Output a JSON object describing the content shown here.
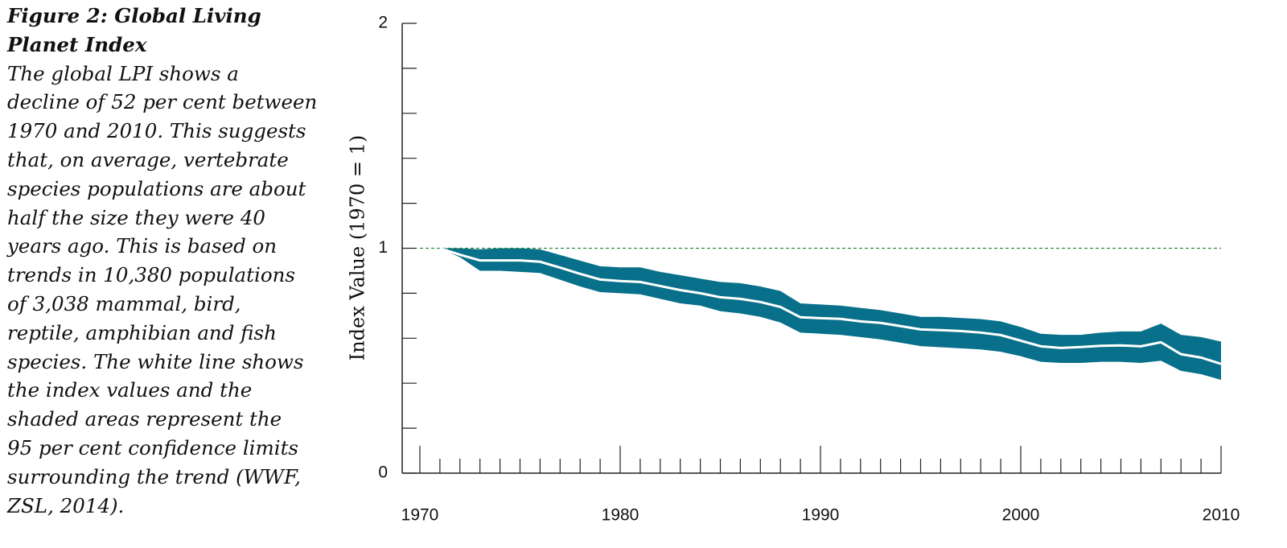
{
  "caption": {
    "title_lines": [
      "Figure 2: Global Living",
      "Planet Index"
    ],
    "body_lines": [
      "The global LPI shows a",
      "decline of 52 per cent between",
      "1970 and 2010. This suggests",
      "that, on average, vertebrate",
      "species populations are about",
      "half the size they were 40",
      "years ago. This is based on",
      "trends in 10,380 populations",
      "of 3,038 mammal, bird,",
      "reptile, amphibian and fish",
      "species. The white line shows",
      "the index values and the",
      "shaded areas represent the",
      "95 per cent confidence limits",
      "surrounding the trend (WWF,",
      "ZSL, 2014)."
    ]
  },
  "chart_data": {
    "type": "line",
    "y_label": "Index Value (1970 = 1)",
    "x": [
      1971,
      1972,
      1973,
      1974,
      1975,
      1976,
      1977,
      1978,
      1979,
      1980,
      1981,
      1982,
      1983,
      1984,
      1985,
      1986,
      1987,
      1988,
      1989,
      1990,
      1991,
      1992,
      1993,
      1994,
      1995,
      1996,
      1997,
      1998,
      1999,
      2000,
      2001,
      2002,
      2003,
      2004,
      2005,
      2006,
      2007,
      2008,
      2009,
      2010
    ],
    "values": [
      1.0,
      0.971,
      0.946,
      0.946,
      0.946,
      0.94,
      0.914,
      0.886,
      0.861,
      0.854,
      0.85,
      0.832,
      0.814,
      0.8,
      0.782,
      0.775,
      0.761,
      0.739,
      0.693,
      0.689,
      0.686,
      0.675,
      0.668,
      0.654,
      0.639,
      0.636,
      0.632,
      0.625,
      0.614,
      0.589,
      0.564,
      0.557,
      0.561,
      0.566,
      0.568,
      0.564,
      0.582,
      0.529,
      0.514,
      0.486
    ],
    "color": "#ffffff",
    "band": {
      "color": "#08708a",
      "upper": [
        1.0,
        1.0,
        0.995,
        1.0,
        1.0,
        0.995,
        0.97,
        0.945,
        0.92,
        0.915,
        0.915,
        0.895,
        0.88,
        0.865,
        0.85,
        0.845,
        0.83,
        0.81,
        0.755,
        0.75,
        0.745,
        0.735,
        0.725,
        0.71,
        0.695,
        0.695,
        0.69,
        0.685,
        0.675,
        0.65,
        0.62,
        0.615,
        0.615,
        0.625,
        0.63,
        0.63,
        0.665,
        0.615,
        0.605,
        0.585
      ],
      "lower": [
        1.0,
        0.96,
        0.9,
        0.9,
        0.895,
        0.89,
        0.86,
        0.83,
        0.805,
        0.8,
        0.795,
        0.775,
        0.755,
        0.745,
        0.72,
        0.71,
        0.695,
        0.67,
        0.625,
        0.62,
        0.615,
        0.605,
        0.595,
        0.58,
        0.565,
        0.56,
        0.555,
        0.55,
        0.54,
        0.52,
        0.495,
        0.49,
        0.49,
        0.495,
        0.495,
        0.49,
        0.5,
        0.455,
        0.44,
        0.415
      ]
    },
    "reference_line": {
      "value": 1,
      "color": "#2e8b3e"
    },
    "xlim": [
      1970,
      2010
    ],
    "ylim": [
      0,
      2
    ],
    "xticks": [
      1970,
      1980,
      1990,
      2000,
      2010
    ],
    "xticks_minor": [
      1971,
      1972,
      1973,
      1974,
      1975,
      1976,
      1977,
      1978,
      1979,
      1981,
      1982,
      1983,
      1984,
      1985,
      1986,
      1987,
      1988,
      1989,
      1991,
      1992,
      1993,
      1994,
      1995,
      1996,
      1997,
      1998,
      1999,
      2001,
      2002,
      2003,
      2004,
      2005,
      2006,
      2007,
      2008,
      2009
    ],
    "yticks": [
      0,
      1,
      2
    ],
    "yticks_minor": [
      0.2,
      0.4,
      0.6,
      0.8,
      1.2,
      1.4,
      1.6,
      1.8
    ]
  }
}
